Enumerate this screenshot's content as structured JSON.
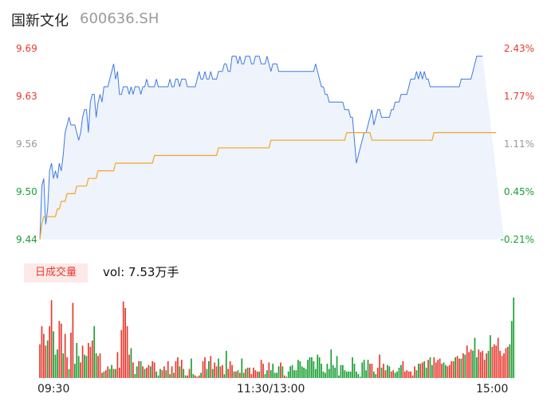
{
  "header": {
    "name": "国新文化",
    "code": "600636.SH"
  },
  "colors": {
    "up": "#e8392f",
    "down": "#1aa034",
    "neutral": "#999999",
    "price_line": "#3f7ae0",
    "avg_line": "#f5a623",
    "area_fill": "#eef3fc"
  },
  "volume": {
    "tag": "日成交量",
    "label": "vol: 7.53万手"
  },
  "chart_data": [
    {
      "type": "line",
      "title": "",
      "y_ticks_left": [
        "9.69",
        "9.63",
        "9.56",
        "9.50",
        "9.44"
      ],
      "y_ticks_right": [
        "2.43%",
        "1.77%",
        "1.11%",
        "0.45%",
        "-0.21%"
      ],
      "x_ticks": [
        "09:30",
        "11:30/13:00",
        "15:00"
      ],
      "ylim": [
        9.44,
        9.69
      ],
      "x_points": 240,
      "series": [
        {
          "key": "price",
          "color": "#3f7ae0",
          "values": [
            9.44,
            9.51,
            9.52,
            9.46,
            9.48,
            9.53,
            9.54,
            9.52,
            9.53,
            9.52,
            9.54,
            9.53,
            9.55,
            9.58,
            9.59,
            9.6,
            9.59,
            9.59,
            9.59,
            9.58,
            9.57,
            9.58,
            9.6,
            9.61,
            9.61,
            9.58,
            9.62,
            9.63,
            9.63,
            9.6,
            9.62,
            9.63,
            9.62,
            9.64,
            9.64,
            9.64,
            9.65,
            9.66,
            9.67,
            9.65,
            9.66,
            9.63,
            9.63,
            9.64,
            9.64,
            9.64,
            9.63,
            9.64,
            9.63,
            9.64,
            9.64,
            9.64,
            9.63,
            9.64,
            9.64,
            9.65,
            9.64,
            9.64,
            9.64,
            9.64,
            9.65,
            9.64,
            9.64,
            9.64,
            9.64,
            9.64,
            9.64,
            9.65,
            9.64,
            9.64,
            9.65,
            9.65,
            9.64,
            9.65,
            9.65,
            9.65,
            9.64,
            9.64,
            9.64,
            9.64,
            9.64,
            9.65,
            9.66,
            9.65,
            9.65,
            9.66,
            9.65,
            9.65,
            9.66,
            9.65,
            9.65,
            9.65,
            9.66,
            9.66,
            9.66,
            9.67,
            9.67,
            9.66,
            9.66,
            9.68,
            9.68,
            9.68,
            9.67,
            9.68,
            9.67,
            9.67,
            9.68,
            9.68,
            9.68,
            9.67,
            9.67,
            9.68,
            9.68,
            9.68,
            9.67,
            9.67,
            9.67,
            9.68,
            9.67,
            9.66,
            9.67,
            9.67,
            9.67,
            9.66,
            9.66,
            9.66,
            9.66,
            9.66,
            9.66,
            9.66,
            9.66,
            9.66,
            9.66,
            9.66,
            9.66,
            9.66,
            9.66,
            9.66,
            9.66,
            9.66,
            9.66,
            9.66,
            9.67,
            9.66,
            9.65,
            9.64,
            9.64,
            9.63,
            9.63,
            9.62,
            9.62,
            9.62,
            9.62,
            9.62,
            9.62,
            9.62,
            9.62,
            9.61,
            9.61,
            9.61,
            9.6,
            9.6,
            9.57,
            9.54,
            9.55,
            9.56,
            9.57,
            9.58,
            9.58,
            9.59,
            9.6,
            9.61,
            9.59,
            9.6,
            9.61,
            9.61,
            9.6,
            9.6,
            9.6,
            9.6,
            9.6,
            9.61,
            9.61,
            9.62,
            9.62,
            9.62,
            9.63,
            9.63,
            9.63,
            9.63,
            9.64,
            9.65,
            9.65,
            9.65,
            9.66,
            9.65,
            9.66,
            9.65,
            9.66,
            9.65,
            9.65,
            9.64,
            9.64,
            9.64,
            9.64,
            9.64,
            9.64,
            9.64,
            9.64,
            9.64,
            9.64,
            9.64,
            9.64,
            9.64,
            9.64,
            9.64,
            9.64,
            9.65,
            9.65,
            9.65,
            9.65,
            9.65,
            9.65,
            9.66,
            9.67,
            9.68,
            9.68,
            9.68,
            9.68
          ]
        },
        {
          "key": "avg",
          "color": "#f5a623",
          "values": [
            9.44,
            9.46,
            9.47,
            9.47,
            9.47,
            9.47,
            9.47,
            9.47,
            9.47,
            9.48,
            9.48,
            9.49,
            9.49,
            9.49,
            9.5,
            9.5,
            9.5,
            9.5,
            9.5,
            9.51,
            9.51,
            9.51,
            9.51,
            9.51,
            9.51,
            9.52,
            9.52,
            9.52,
            9.52,
            9.52,
            9.53,
            9.53,
            9.53,
            9.53,
            9.53,
            9.53,
            9.53,
            9.53,
            9.53,
            9.54,
            9.54,
            9.54,
            9.54,
            9.54,
            9.54,
            9.54,
            9.54,
            9.54,
            9.54,
            9.54,
            9.54,
            9.54,
            9.54,
            9.54,
            9.54,
            9.54,
            9.54,
            9.54,
            9.54,
            9.55,
            9.55,
            9.55,
            9.55,
            9.55,
            9.55,
            9.55,
            9.55,
            9.55,
            9.55,
            9.55,
            9.55,
            9.55,
            9.55,
            9.55,
            9.55,
            9.55,
            9.55,
            9.55,
            9.55,
            9.55,
            9.55,
            9.55,
            9.55,
            9.55,
            9.55,
            9.55,
            9.55,
            9.55,
            9.55,
            9.55,
            9.55,
            9.55,
            9.56,
            9.56,
            9.56,
            9.56,
            9.56,
            9.56,
            9.56,
            9.56,
            9.56,
            9.56,
            9.56,
            9.56,
            9.56,
            9.56,
            9.56,
            9.56,
            9.56,
            9.56,
            9.56,
            9.56,
            9.56,
            9.56,
            9.56,
            9.56,
            9.56,
            9.56,
            9.56,
            9.57,
            9.57,
            9.57,
            9.57,
            9.57,
            9.57,
            9.57,
            9.57,
            9.57,
            9.57,
            9.57,
            9.57,
            9.57,
            9.57,
            9.57,
            9.57,
            9.57,
            9.57,
            9.57,
            9.57,
            9.57,
            9.57,
            9.57,
            9.57,
            9.57,
            9.57,
            9.57,
            9.57,
            9.57,
            9.57,
            9.57,
            9.57,
            9.57,
            9.57,
            9.57,
            9.57,
            9.57,
            9.57,
            9.57,
            9.58,
            9.58,
            9.58,
            9.58,
            9.58,
            9.58,
            9.58,
            9.58,
            9.58,
            9.58,
            9.58,
            9.58,
            9.58,
            9.57,
            9.57,
            9.57,
            9.57,
            9.57,
            9.57,
            9.57,
            9.57,
            9.57,
            9.57,
            9.57,
            9.57,
            9.57,
            9.57,
            9.57,
            9.57,
            9.57,
            9.57,
            9.57,
            9.57,
            9.57,
            9.57,
            9.57,
            9.57,
            9.57,
            9.57,
            9.57,
            9.57,
            9.57,
            9.57,
            9.57,
            9.57,
            9.58,
            9.58,
            9.58,
            9.58,
            9.58,
            9.58,
            9.58,
            9.58,
            9.58,
            9.58,
            9.58,
            9.58,
            9.58,
            9.58,
            9.58,
            9.58,
            9.58,
            9.58,
            9.58,
            9.58,
            9.58,
            9.58,
            9.58,
            9.58,
            9.58,
            9.58,
            9.58,
            9.58,
            9.58,
            9.58,
            9.58,
            9.58,
            9.58
          ]
        }
      ]
    },
    {
      "type": "bar",
      "title": "日成交量",
      "x_points": 240,
      "values": [
        26,
        40,
        34,
        25,
        29,
        40,
        60,
        36,
        18,
        22,
        44,
        42,
        19,
        34,
        16,
        7,
        35,
        58,
        11,
        27,
        17,
        12,
        25,
        18,
        17,
        27,
        24,
        29,
        40,
        19,
        17,
        19,
        4,
        5,
        6,
        9,
        7,
        10,
        7,
        7,
        20,
        8,
        37,
        59,
        54,
        40,
        18,
        23,
        12,
        3,
        9,
        13,
        13,
        9,
        7,
        8,
        10,
        9,
        13,
        12,
        5,
        2,
        7,
        6,
        9,
        6,
        13,
        3,
        9,
        4,
        13,
        16,
        9,
        14,
        7,
        2,
        2,
        7,
        15,
        3,
        2,
        1,
        2,
        4,
        13,
        16,
        7,
        13,
        17,
        7,
        12,
        9,
        15,
        9,
        10,
        3,
        21,
        7,
        13,
        10,
        5,
        5,
        6,
        4,
        15,
        4,
        7,
        8,
        8,
        3,
        8,
        6,
        5,
        5,
        14,
        11,
        3,
        6,
        12,
        6,
        11,
        4,
        4,
        9,
        12,
        9,
        2,
        1,
        5,
        9,
        10,
        6,
        6,
        14,
        13,
        9,
        8,
        7,
        14,
        16,
        16,
        13,
        7,
        18,
        16,
        11,
        5,
        4,
        11,
        7,
        22,
        10,
        8,
        17,
        2,
        10,
        10,
        6,
        5,
        5,
        5,
        16,
        11,
        5,
        3,
        1,
        12,
        14,
        6,
        14,
        11,
        11,
        5,
        3,
        8,
        18,
        8,
        11,
        6,
        10,
        9,
        5,
        6,
        4,
        5,
        8,
        10,
        13,
        5,
        6,
        5,
        5,
        2,
        9,
        6,
        11,
        11,
        12,
        13,
        8,
        14,
        16,
        10,
        16,
        12,
        14,
        15,
        11,
        12,
        10,
        9,
        10,
        13,
        13,
        16,
        17,
        15,
        15,
        19,
        18,
        25,
        20,
        22,
        21,
        31,
        16,
        22,
        20,
        21,
        14,
        19,
        21,
        33,
        24,
        26,
        25,
        31,
        21,
        17,
        19,
        23,
        24,
        26,
        44,
        62
      ],
      "colors": [
        "r",
        "r",
        "r",
        "r",
        "g",
        "r",
        "r",
        "g",
        "g",
        "g",
        "r",
        "r",
        "g",
        "r",
        "r",
        "g",
        "r",
        "r",
        "g",
        "g",
        "g",
        "r",
        "r",
        "g",
        "g",
        "r",
        "r",
        "r",
        "g",
        "g",
        "r",
        "r",
        "r",
        "g",
        "r",
        "r",
        "g",
        "g",
        "r",
        "g",
        "r",
        "r",
        "r",
        "r",
        "r",
        "r",
        "r",
        "g",
        "r",
        "g",
        "g",
        "r",
        "g",
        "r",
        "g",
        "r",
        "r",
        "g",
        "r",
        "r",
        "g",
        "g",
        "g",
        "r",
        "r",
        "g",
        "r",
        "g",
        "r",
        "g",
        "r",
        "r",
        "g",
        "r",
        "g",
        "g",
        "r",
        "r",
        "g",
        "g",
        "r",
        "r",
        "r",
        "g",
        "r",
        "r",
        "g",
        "g",
        "r",
        "g",
        "r",
        "r",
        "g",
        "r",
        "r",
        "g",
        "g",
        "r",
        "r",
        "r",
        "g",
        "r",
        "g",
        "r",
        "g",
        "g",
        "r",
        "g",
        "r",
        "r",
        "r",
        "r",
        "r",
        "g",
        "r",
        "r",
        "g",
        "g",
        "r",
        "g",
        "g",
        "g",
        "g",
        "g",
        "r",
        "g",
        "r",
        "g",
        "g",
        "g",
        "g",
        "g",
        "g",
        "g",
        "g",
        "g",
        "g",
        "g",
        "g",
        "g",
        "g",
        "g",
        "g",
        "g",
        "g",
        "g",
        "g",
        "g",
        "g",
        "g",
        "g",
        "g",
        "g",
        "g",
        "g",
        "g",
        "g",
        "g",
        "g",
        "g",
        "g",
        "g",
        "g",
        "g",
        "g",
        "g",
        "g",
        "g",
        "g",
        "g",
        "r",
        "r",
        "g",
        "g",
        "r",
        "r",
        "g",
        "r",
        "r",
        "g",
        "g",
        "r",
        "r",
        "g",
        "g",
        "g",
        "g",
        "r",
        "r",
        "r",
        "r",
        "r",
        "r",
        "r",
        "g",
        "g",
        "r",
        "r",
        "g",
        "g",
        "r",
        "g",
        "g",
        "r",
        "r",
        "r",
        "r",
        "r",
        "g",
        "g",
        "r",
        "r",
        "r",
        "r",
        "g",
        "r",
        "r",
        "g",
        "r",
        "g",
        "r",
        "r",
        "r",
        "g",
        "g",
        "g",
        "r",
        "r",
        "r",
        "r",
        "r",
        "g",
        "g",
        "r",
        "r",
        "r",
        "r",
        "r",
        "r",
        "r",
        "r",
        "r"
      ]
    }
  ]
}
